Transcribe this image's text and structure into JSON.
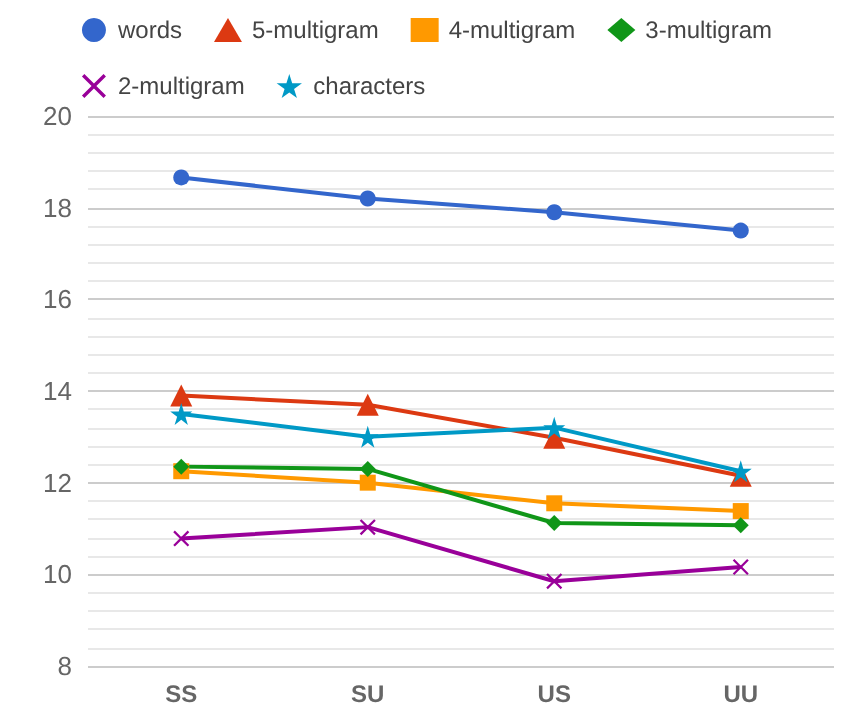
{
  "chart_data": {
    "type": "line",
    "categories": [
      "SS",
      "SU",
      "US",
      "UU"
    ],
    "series": [
      {
        "name": "words",
        "color": "#3366cc",
        "marker": "circle",
        "values": [
          18.66,
          18.2,
          17.9,
          17.5
        ]
      },
      {
        "name": "5-multigram",
        "color": "#dc3912",
        "marker": "triangle",
        "values": [
          13.9,
          13.7,
          12.98,
          12.15
        ]
      },
      {
        "name": "4-multigram",
        "color": "#ff9900",
        "marker": "square",
        "values": [
          12.25,
          12.0,
          11.55,
          11.38
        ]
      },
      {
        "name": "3-multigram",
        "color": "#109618",
        "marker": "diamond",
        "values": [
          12.35,
          12.3,
          11.12,
          11.07
        ]
      },
      {
        "name": "2-multigram",
        "color": "#990099",
        "marker": "cross",
        "values": [
          10.78,
          11.03,
          9.85,
          10.16
        ]
      },
      {
        "name": "characters",
        "color": "#0099c6",
        "marker": "star",
        "values": [
          13.5,
          13.0,
          13.2,
          12.25
        ]
      }
    ],
    "ylim": [
      8,
      20
    ],
    "yticks": [
      8,
      10,
      12,
      14,
      16,
      18,
      20
    ],
    "grid": "y",
    "legend": "top"
  }
}
